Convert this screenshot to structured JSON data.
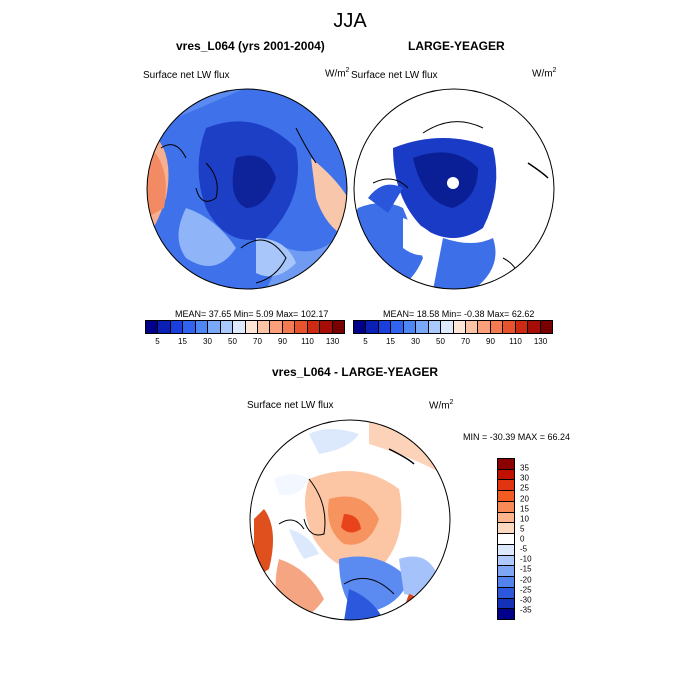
{
  "title": "JJA",
  "panels": [
    {
      "title": "vres_L064 (yrs 2001-2004)",
      "subtitle": "Surface net LW flux",
      "units": "W/m",
      "units_exp": "2",
      "stats": "MEAN=  37.65  Min=   5.09  Max= 102.17"
    },
    {
      "title": "LARGE-YEAGER",
      "subtitle": "Surface net LW flux",
      "units": "W/m",
      "units_exp": "2",
      "stats": "MEAN=  18.58  Min=  -0.38  Max=  62.62"
    },
    {
      "title": "vres_L064 - LARGE-YEAGER",
      "subtitle": "Surface net LW flux",
      "units": "W/m",
      "units_exp": "2",
      "stats": "MIN = -30.39 MAX =  66.24"
    }
  ],
  "colorbar_top": {
    "colors": [
      "#00008a",
      "#0a1fb4",
      "#1a3fdc",
      "#2f63f0",
      "#4f86f5",
      "#79a8f8",
      "#a9c8fb",
      "#dde9fd",
      "#fde6d6",
      "#fcc4a4",
      "#f9a07a",
      "#f47a52",
      "#e8532d",
      "#cc2b12",
      "#a50e06",
      "#780000"
    ],
    "labels": [
      "5",
      "15",
      "30",
      "50",
      "70",
      "90",
      "110",
      "130"
    ]
  },
  "colorbar_diff": {
    "colors": [
      "#8b0000",
      "#c01000",
      "#e03510",
      "#f25c20",
      "#f78a55",
      "#fbb48c",
      "#fdd8c0",
      "#ffffff",
      "#dce9fd",
      "#aec9fa",
      "#7fa6f5",
      "#5282ee",
      "#2b58dc",
      "#1431b8",
      "#00008a"
    ],
    "labels": [
      "35",
      "30",
      "25",
      "20",
      "15",
      "10",
      "5",
      "0",
      "-5",
      "-10",
      "-15",
      "-20",
      "-25",
      "-30",
      "-35"
    ]
  },
  "icons": {
    "map1": "polar-stereographic-map",
    "map2": "polar-stereographic-map",
    "map3": "polar-stereographic-map"
  }
}
